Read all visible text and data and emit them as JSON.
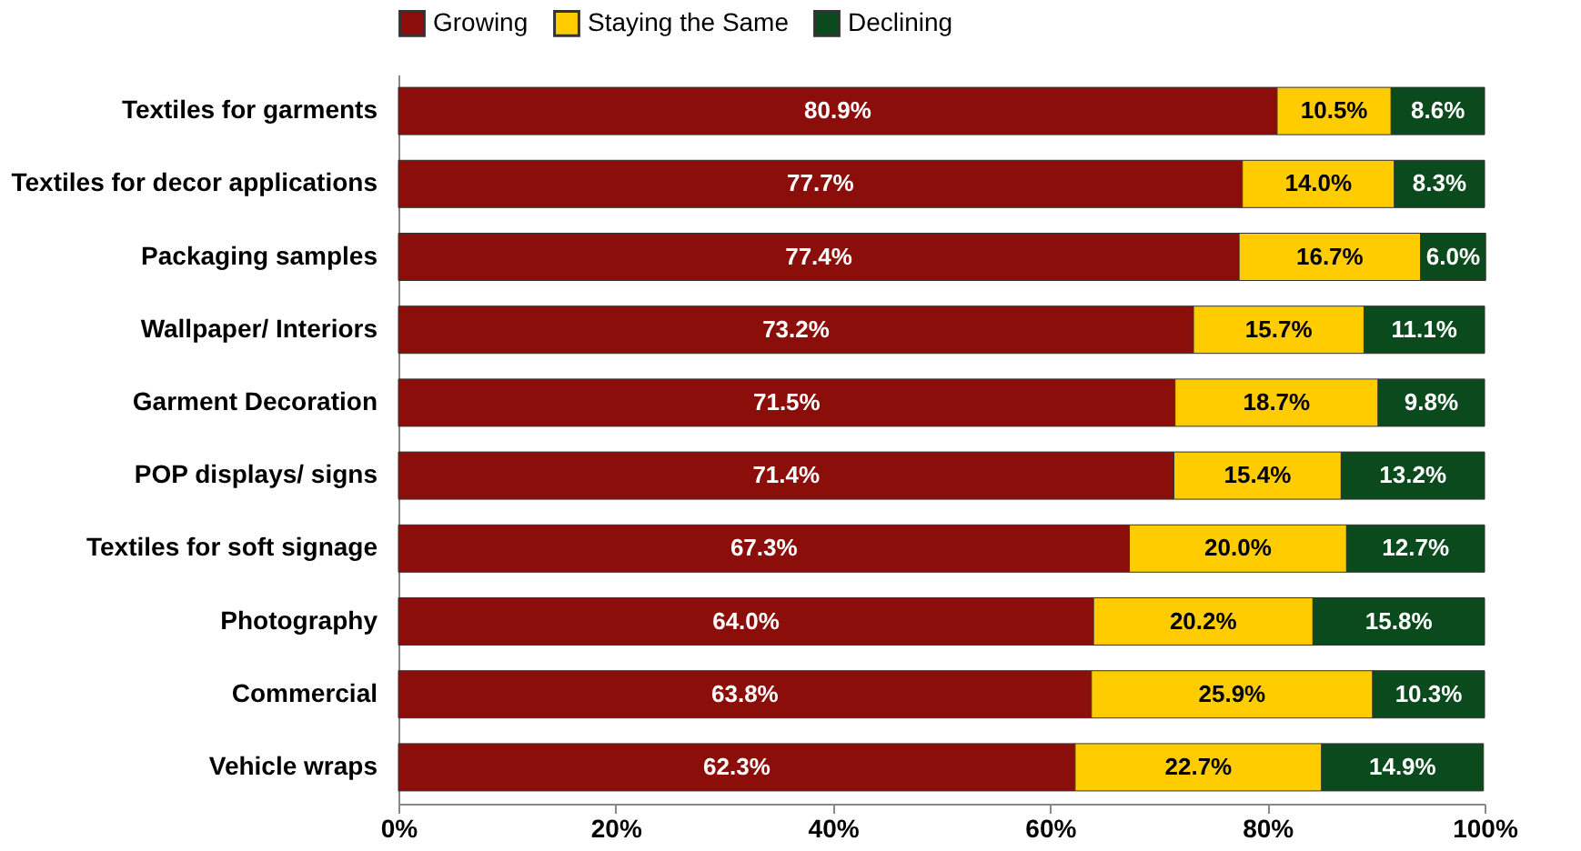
{
  "chart_data": {
    "type": "bar",
    "orientation": "horizontal",
    "stacked": true,
    "categories": [
      "Textiles for garments",
      "Textiles for decor applications",
      "Packaging samples",
      "Wallpaper/ Interiors",
      "Garment Decoration",
      "POP displays/ signs",
      "Textiles for soft signage",
      "Photography",
      "Commercial",
      "Vehicle wraps"
    ],
    "series": [
      {
        "name": "Growing",
        "color": "#8b0e0b",
        "values": [
          80.9,
          77.7,
          77.4,
          73.2,
          71.5,
          71.4,
          67.3,
          64.0,
          63.8,
          62.3
        ],
        "value_labels": [
          "80.9%",
          "77.7%",
          "77.4%",
          "73.2%",
          "71.5%",
          "71.4%",
          "67.3%",
          "64.0%",
          "63.8%",
          "62.3%"
        ]
      },
      {
        "name": "Staying the Same",
        "color": "#ffcc00",
        "values": [
          10.5,
          14.0,
          16.7,
          15.7,
          18.7,
          15.4,
          20.0,
          20.2,
          25.9,
          22.7
        ],
        "value_labels": [
          "10.5%",
          "14.0%",
          "16.7%",
          "15.7%",
          "18.7%",
          "15.4%",
          "20.0%",
          "20.2%",
          "25.9%",
          "22.7%"
        ]
      },
      {
        "name": "Declining",
        "color": "#0b4a1c",
        "values": [
          8.6,
          8.3,
          6.0,
          11.1,
          9.8,
          13.2,
          12.7,
          15.8,
          10.3,
          14.9
        ],
        "value_labels": [
          "8.6%",
          "8.3%",
          "6.0%",
          "11.1%",
          "9.8%",
          "13.2%",
          "12.7%",
          "15.8%",
          "10.3%",
          "14.9%"
        ]
      }
    ],
    "xlim": [
      0,
      100
    ],
    "xticks": [
      {
        "value": 0,
        "label": "0%"
      },
      {
        "value": 20,
        "label": "20%"
      },
      {
        "value": 40,
        "label": "40%"
      },
      {
        "value": 60,
        "label": "60%"
      },
      {
        "value": 80,
        "label": "80%"
      },
      {
        "value": 100,
        "label": "100%"
      }
    ],
    "legend": "top",
    "grid": false
  }
}
